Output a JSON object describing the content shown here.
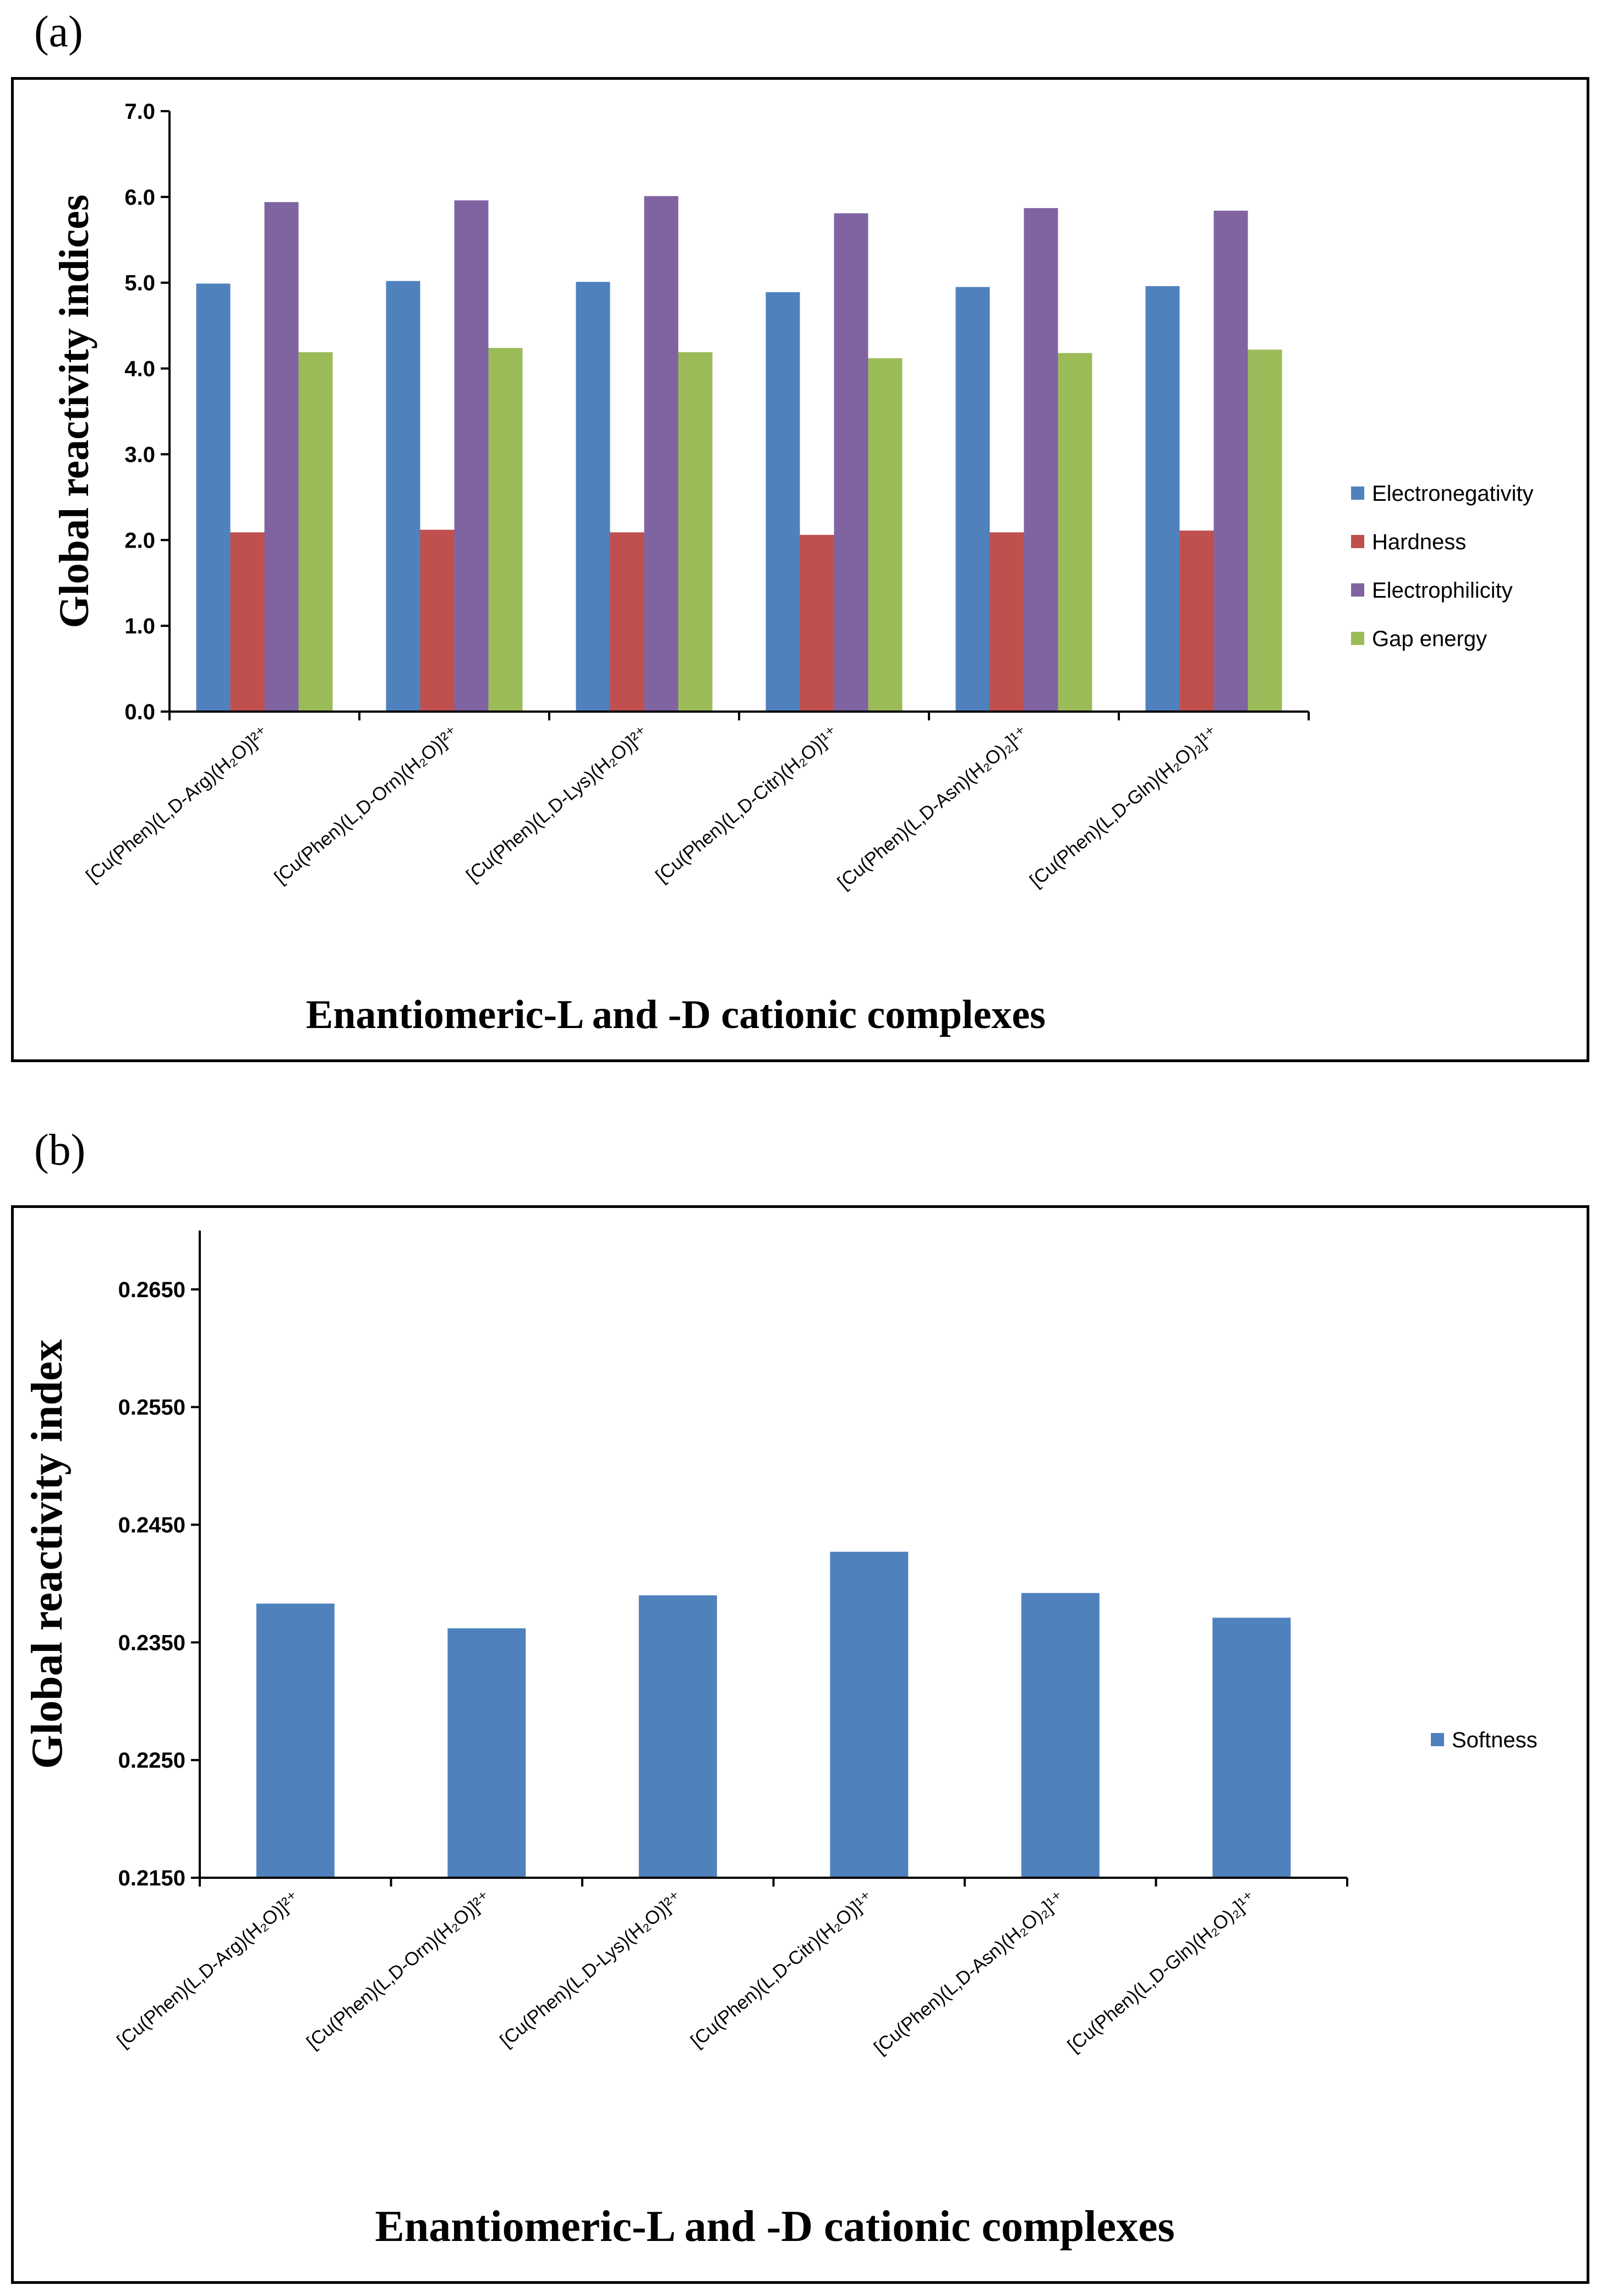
{
  "chart_data": [
    {
      "panel": "(a)",
      "type": "bar",
      "ylabel": "Global reactivity indices",
      "xlabel": "Enantiomeric-L and -D cationic complexes",
      "ylim": [
        0,
        7
      ],
      "yticks": [
        "0.0",
        "1.0",
        "2.0",
        "3.0",
        "4.0",
        "5.0",
        "6.0",
        "7.0"
      ],
      "grid": false,
      "legend_position": "right",
      "categories": [
        "[Cu(Phen)(L,D-Arg)(H₂O)]²⁺",
        "[Cu(Phen)(L,D-Orn)(H₂O)]²⁺",
        "[Cu(Phen)(L,D-Lys)(H₂O)]²⁺",
        "[Cu(Phen)(L,D-Citr)(H₂O)]¹⁺",
        "[Cu(Phen)(L,D-Asn)(H₂O)₂]¹⁺",
        "[Cu(Phen)(L,D-Gln)(H₂O)₂]¹⁺"
      ],
      "series": [
        {
          "name": "Electronegativity",
          "color": "#4f81bd",
          "values": [
            4.99,
            5.02,
            5.01,
            4.89,
            4.95,
            4.96
          ]
        },
        {
          "name": "Hardness",
          "color": "#c0504d",
          "values": [
            2.09,
            2.12,
            2.09,
            2.06,
            2.09,
            2.11
          ]
        },
        {
          "name": "Electrophilicity",
          "color": "#8064a2",
          "values": [
            5.94,
            5.96,
            6.01,
            5.81,
            5.87,
            5.84
          ]
        },
        {
          "name": "Gap energy",
          "color": "#9bbb59",
          "values": [
            4.19,
            4.24,
            4.19,
            4.12,
            4.18,
            4.22
          ]
        }
      ]
    },
    {
      "panel": "(b)",
      "type": "bar",
      "ylabel": "Global reactivity index",
      "xlabel": "Enantiomeric-L and -D cationic complexes",
      "ylim": [
        0.215,
        0.27
      ],
      "yticks": [
        "0.2150",
        "0.2250",
        "0.2350",
        "0.2450",
        "0.2550",
        "0.2650"
      ],
      "grid": false,
      "legend_position": "right",
      "categories": [
        "[Cu(Phen)(L,D-Arg)(H₂O)]²⁺",
        "[Cu(Phen)(L,D-Orn)(H₂O)]²⁺",
        "[Cu(Phen)(L,D-Lys)(H₂O)]²⁺",
        "[Cu(Phen)(L,D-Citr)(H₂O)]¹⁺",
        "[Cu(Phen)(L,D-Asn)(H₂O)₂]¹⁺",
        "[Cu(Phen)(L,D-Gln)(H₂O)₂]¹⁺"
      ],
      "series": [
        {
          "name": "Softness",
          "color": "#4f81bd",
          "values": [
            0.2383,
            0.2362,
            0.239,
            0.2427,
            0.2392,
            0.2371
          ]
        }
      ]
    }
  ]
}
